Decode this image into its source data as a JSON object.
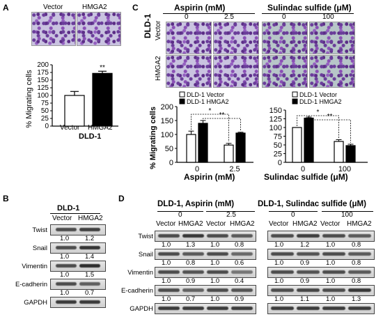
{
  "panels": {
    "A": "A",
    "B": "B",
    "C": "C",
    "D": "D"
  },
  "panelA": {
    "image_labels": [
      "Vector",
      "HMGA2"
    ],
    "chart_data": {
      "type": "bar",
      "categories": [
        "Vector",
        "HMGA2"
      ],
      "values": [
        100,
        172
      ],
      "errors": [
        13,
        7
      ],
      "colors": [
        "#ffffff",
        "#000000"
      ],
      "ylabel": "% Migrating cells",
      "xlabel": "DLD-1",
      "ylim": [
        0,
        200
      ],
      "yticks": [
        "0",
        "25",
        "50",
        "75",
        "100",
        "125",
        "150",
        "175",
        "200"
      ],
      "significance": "**"
    }
  },
  "panelC": {
    "aspirin_title": "Aspirin (mM)",
    "aspirin_doses": [
      "0",
      "2.5"
    ],
    "sulindac_title": "Sulindac sulfide (μM)",
    "sulindac_doses": [
      "0",
      "100"
    ],
    "cell_line": "DLD-1",
    "row_labels": [
      "Vector",
      "HMGA2"
    ],
    "chart_data": [
      {
        "type": "bar",
        "categories": [
          "0",
          "2.5"
        ],
        "series": [
          {
            "name": "DLD-1 Vector",
            "values": [
              100,
              62
            ],
            "errors": [
              12,
              6
            ],
            "color": "#ffffff"
          },
          {
            "name": "DLD-1 HMGA2",
            "values": [
              140,
              105
            ],
            "errors": [
              10,
              3
            ],
            "color": "#000000"
          }
        ],
        "ylabel": "% Migrating cells",
        "xlabel": "Aspirin (mM)",
        "ylim": [
          0,
          200
        ],
        "yticks": [
          "0",
          "50",
          "100",
          "150",
          "200"
        ],
        "significance": [
          "*",
          "**"
        ]
      },
      {
        "type": "bar",
        "categories": [
          "0",
          "100"
        ],
        "series": [
          {
            "name": "DLD-1 Vector",
            "values": [
              100,
              60
            ],
            "errors": [
              0,
              5
            ],
            "color": "#ffffff"
          },
          {
            "name": "DLD-1 HMGA2",
            "values": [
              127,
              48
            ],
            "errors": [
              3,
              4
            ],
            "color": "#000000"
          }
        ],
        "ylabel": "",
        "xlabel": "Sulindac sulfide (μM)",
        "ylim": [
          0,
          150
        ],
        "yticks": [
          "0",
          "25",
          "50",
          "75",
          "100",
          "125",
          "150"
        ],
        "significance": [
          "*",
          "**"
        ]
      }
    ]
  },
  "panelB": {
    "title": "DLD-1",
    "cols": [
      "Vector",
      "HMGA2"
    ],
    "rows": [
      {
        "name": "Twist",
        "values": [
          "1.0",
          "1.2"
        ]
      },
      {
        "name": "Snail",
        "values": [
          "1.0",
          "1.4"
        ]
      },
      {
        "name": "Vimentin",
        "values": [
          "1.0",
          "1.5"
        ]
      },
      {
        "name": "E-cadherin",
        "values": [
          "1.0",
          "0.7"
        ]
      },
      {
        "name": "GAPDH",
        "values": []
      }
    ]
  },
  "panelD": {
    "left_title": "DLD-1, Aspirin (mM)",
    "left_doses": [
      "0",
      "2.5"
    ],
    "right_title": "DLD-1, Sulindac sulfide (μM)",
    "right_doses": [
      "0",
      "100"
    ],
    "cols": [
      "Vector",
      "HMGA2",
      "Vector",
      "HMGA2"
    ],
    "rows": [
      {
        "name": "Twist",
        "left": [
          "1.0",
          "1.3",
          "1.0",
          "0.8"
        ],
        "right": [
          "1.0",
          "1.2",
          "1.0",
          "0.8"
        ]
      },
      {
        "name": "Snail",
        "left": [
          "1.0",
          "0.8",
          "1.0",
          "0.6"
        ],
        "right": [
          "1.0",
          "0.9",
          "1.0",
          "0.8"
        ]
      },
      {
        "name": "Vimentin",
        "left": [
          "1.0",
          "0.9",
          "1.0",
          "0.4"
        ],
        "right": [
          "1.0",
          "0.9",
          "1.0",
          "0.8"
        ]
      },
      {
        "name": "E-cadherin",
        "left": [
          "1.0",
          "0.7",
          "1.0",
          "0.9"
        ],
        "right": [
          "1.0",
          "1.1",
          "1.0",
          "1.3"
        ]
      },
      {
        "name": "GAPDH",
        "left": [],
        "right": []
      }
    ]
  }
}
